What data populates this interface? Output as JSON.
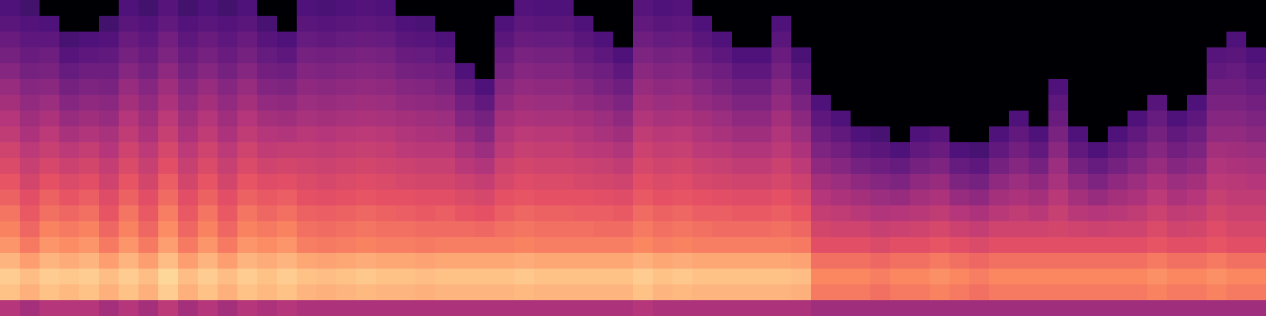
{
  "chart_data": {
    "type": "heatmap",
    "tick_labels": false,
    "zlim": [
      0,
      100
    ],
    "cells": [
      [
        50,
        88,
        90,
        85,
        78,
        74,
        71,
        67,
        64,
        60,
        57,
        53,
        50,
        46,
        43,
        39,
        35,
        32,
        28,
        25
      ],
      [
        46,
        84,
        87,
        80,
        72,
        68,
        65,
        62,
        58,
        55,
        52,
        48,
        45,
        42,
        39,
        35,
        32,
        29,
        26,
        22
      ],
      [
        50,
        88,
        90,
        85,
        78,
        74,
        70,
        67,
        63,
        59,
        55,
        52,
        48,
        44,
        40,
        36,
        33,
        29,
        25,
        0
      ],
      [
        50,
        86,
        89,
        83,
        76,
        72,
        68,
        64,
        60,
        56,
        52,
        47,
        43,
        39,
        35,
        31,
        27,
        23,
        0,
        0
      ],
      [
        50,
        88,
        90,
        85,
        78,
        74,
        70,
        66,
        62,
        58,
        54,
        49,
        45,
        41,
        37,
        33,
        29,
        25,
        0,
        0
      ],
      [
        46,
        84,
        87,
        80,
        72,
        68,
        64,
        61,
        57,
        54,
        50,
        47,
        43,
        40,
        36,
        33,
        30,
        26,
        22,
        0
      ],
      [
        50,
        88,
        90,
        85,
        78,
        74,
        71,
        67,
        64,
        60,
        57,
        53,
        50,
        46,
        43,
        39,
        35,
        32,
        28,
        25
      ],
      [
        46,
        84,
        87,
        80,
        72,
        68,
        65,
        62,
        58,
        55,
        52,
        48,
        45,
        42,
        39,
        35,
        32,
        29,
        26,
        22
      ],
      [
        52,
        90,
        92,
        87,
        80,
        76,
        73,
        69,
        66,
        62,
        59,
        55,
        52,
        48,
        45,
        41,
        37,
        34,
        30,
        27
      ],
      [
        46,
        84,
        87,
        80,
        72,
        68,
        65,
        62,
        58,
        55,
        52,
        48,
        45,
        42,
        39,
        35,
        32,
        29,
        26,
        22
      ],
      [
        50,
        88,
        90,
        85,
        78,
        74,
        71,
        67,
        64,
        60,
        57,
        53,
        50,
        46,
        43,
        39,
        35,
        32,
        28,
        25
      ],
      [
        46,
        84,
        87,
        80,
        72,
        68,
        65,
        62,
        58,
        55,
        52,
        48,
        45,
        42,
        39,
        35,
        32,
        29,
        26,
        22
      ],
      [
        50,
        88,
        90,
        85,
        78,
        74,
        71,
        67,
        64,
        60,
        57,
        53,
        50,
        46,
        43,
        39,
        35,
        32,
        28,
        25
      ],
      [
        48,
        86,
        88,
        83,
        76,
        72,
        68,
        65,
        61,
        57,
        53,
        50,
        46,
        42,
        38,
        34,
        31,
        27,
        23,
        0
      ],
      [
        50,
        88,
        90,
        85,
        78,
        74,
        70,
        66,
        62,
        58,
        54,
        49,
        45,
        41,
        37,
        33,
        29,
        25,
        0,
        0
      ],
      [
        48,
        85,
        88,
        82,
        73,
        70,
        67,
        63,
        60,
        57,
        54,
        51,
        47,
        44,
        41,
        38,
        35,
        31,
        28,
        25
      ],
      [
        48,
        84,
        87,
        81,
        72,
        69,
        66,
        62,
        59,
        56,
        53,
        50,
        46,
        43,
        40,
        37,
        34,
        30,
        27,
        24
      ],
      [
        48,
        85,
        88,
        82,
        73,
        70,
        67,
        63,
        60,
        57,
        54,
        51,
        47,
        44,
        41,
        38,
        35,
        31,
        28,
        25
      ],
      [
        48,
        86,
        89,
        83,
        74,
        71,
        68,
        64,
        61,
        58,
        55,
        52,
        48,
        45,
        42,
        39,
        36,
        32,
        29,
        26
      ],
      [
        48,
        85,
        88,
        82,
        73,
        70,
        67,
        63,
        60,
        57,
        54,
        51,
        47,
        44,
        41,
        38,
        35,
        31,
        28,
        25
      ],
      [
        48,
        85,
        88,
        82,
        73,
        70,
        66,
        63,
        59,
        56,
        52,
        49,
        46,
        42,
        39,
        35,
        32,
        28,
        25,
        0
      ],
      [
        48,
        84,
        87,
        81,
        72,
        69,
        65,
        62,
        58,
        55,
        51,
        48,
        45,
        41,
        38,
        34,
        31,
        27,
        24,
        0
      ],
      [
        48,
        85,
        88,
        82,
        73,
        69,
        66,
        62,
        58,
        55,
        51,
        47,
        44,
        40,
        36,
        33,
        29,
        25,
        0,
        0
      ],
      [
        48,
        85,
        88,
        82,
        73,
        69,
        64,
        60,
        56,
        51,
        47,
        43,
        38,
        34,
        30,
        25,
        0,
        0,
        0,
        0
      ],
      [
        48,
        85,
        88,
        82,
        73,
        68,
        63,
        59,
        54,
        49,
        44,
        39,
        35,
        30,
        25,
        0,
        0,
        0,
        0,
        0
      ],
      [
        48,
        85,
        88,
        82,
        73,
        70,
        66,
        63,
        59,
        56,
        52,
        49,
        46,
        42,
        39,
        35,
        32,
        28,
        25,
        0
      ],
      [
        48,
        86,
        89,
        83,
        74,
        71,
        68,
        64,
        61,
        58,
        55,
        52,
        48,
        45,
        42,
        39,
        36,
        32,
        29,
        26
      ],
      [
        48,
        85,
        88,
        82,
        73,
        70,
        67,
        63,
        60,
        57,
        54,
        51,
        47,
        44,
        41,
        38,
        35,
        31,
        28,
        25
      ],
      [
        48,
        85,
        88,
        82,
        73,
        70,
        67,
        63,
        60,
        57,
        54,
        51,
        47,
        44,
        41,
        38,
        35,
        31,
        28,
        25
      ],
      [
        48,
        85,
        88,
        82,
        73,
        70,
        66,
        63,
        59,
        56,
        52,
        49,
        46,
        42,
        39,
        35,
        32,
        28,
        25,
        0
      ],
      [
        48,
        85,
        88,
        82,
        73,
        69,
        66,
        62,
        58,
        55,
        51,
        47,
        44,
        40,
        36,
        33,
        29,
        25,
        0,
        0
      ],
      [
        48,
        85,
        88,
        82,
        73,
        69,
        65,
        61,
        57,
        53,
        49,
        45,
        41,
        37,
        33,
        29,
        25,
        0,
        0,
        0
      ],
      [
        50,
        88,
        90,
        84,
        75,
        72,
        69,
        65,
        62,
        59,
        56,
        53,
        49,
        46,
        43,
        40,
        37,
        33,
        30,
        27
      ],
      [
        48,
        85,
        88,
        82,
        73,
        70,
        67,
        63,
        60,
        57,
        54,
        51,
        47,
        44,
        41,
        38,
        35,
        31,
        28,
        25
      ],
      [
        48,
        86,
        89,
        83,
        74,
        71,
        68,
        64,
        61,
        58,
        55,
        52,
        48,
        45,
        42,
        39,
        36,
        32,
        29,
        26
      ],
      [
        48,
        85,
        88,
        82,
        73,
        70,
        66,
        63,
        59,
        56,
        52,
        49,
        46,
        42,
        39,
        35,
        32,
        28,
        25,
        0
      ],
      [
        48,
        85,
        88,
        82,
        73,
        69,
        66,
        62,
        58,
        55,
        51,
        47,
        44,
        40,
        36,
        33,
        29,
        25,
        0,
        0
      ],
      [
        48,
        85,
        88,
        82,
        73,
        69,
        65,
        61,
        57,
        53,
        49,
        45,
        41,
        37,
        33,
        29,
        25,
        0,
        0,
        0
      ],
      [
        48,
        85,
        88,
        82,
        73,
        69,
        65,
        61,
        57,
        53,
        49,
        45,
        41,
        37,
        33,
        29,
        25,
        0,
        0,
        0
      ],
      [
        48,
        85,
        88,
        82,
        73,
        70,
        66,
        63,
        59,
        56,
        52,
        49,
        46,
        42,
        39,
        35,
        32,
        28,
        25,
        0
      ],
      [
        48,
        84,
        87,
        81,
        72,
        68,
        64,
        60,
        56,
        52,
        48,
        44,
        40,
        36,
        32,
        28,
        24,
        0,
        0,
        0
      ],
      [
        45,
        72,
        75,
        70,
        62,
        58,
        54,
        50,
        46,
        41,
        37,
        33,
        29,
        25,
        0,
        0,
        0,
        0,
        0,
        0
      ],
      [
        45,
        72,
        75,
        70,
        62,
        57,
        53,
        48,
        44,
        39,
        34,
        30,
        25,
        0,
        0,
        0,
        0,
        0,
        0,
        0
      ],
      [
        45,
        72,
        75,
        70,
        62,
        57,
        51,
        46,
        41,
        35,
        30,
        25,
        0,
        0,
        0,
        0,
        0,
        0,
        0,
        0
      ],
      [
        45,
        70,
        73,
        68,
        60,
        55,
        49,
        44,
        39,
        33,
        28,
        23,
        0,
        0,
        0,
        0,
        0,
        0,
        0,
        0
      ],
      [
        45,
        72,
        75,
        70,
        62,
        56,
        50,
        43,
        37,
        31,
        25,
        0,
        0,
        0,
        0,
        0,
        0,
        0,
        0,
        0
      ],
      [
        45,
        72,
        75,
        70,
        62,
        57,
        51,
        46,
        41,
        35,
        30,
        25,
        0,
        0,
        0,
        0,
        0,
        0,
        0,
        0
      ],
      [
        45,
        74,
        77,
        72,
        64,
        59,
        53,
        48,
        43,
        37,
        32,
        27,
        0,
        0,
        0,
        0,
        0,
        0,
        0,
        0
      ],
      [
        45,
        72,
        75,
        70,
        62,
        56,
        50,
        43,
        37,
        31,
        25,
        0,
        0,
        0,
        0,
        0,
        0,
        0,
        0,
        0
      ],
      [
        45,
        70,
        73,
        68,
        60,
        54,
        48,
        41,
        35,
        29,
        23,
        0,
        0,
        0,
        0,
        0,
        0,
        0,
        0,
        0
      ],
      [
        45,
        72,
        75,
        70,
        62,
        57,
        51,
        46,
        41,
        35,
        30,
        25,
        0,
        0,
        0,
        0,
        0,
        0,
        0,
        0
      ],
      [
        45,
        72,
        75,
        70,
        62,
        57,
        53,
        48,
        44,
        39,
        34,
        30,
        25,
        0,
        0,
        0,
        0,
        0,
        0,
        0
      ],
      [
        45,
        72,
        75,
        70,
        62,
        57,
        51,
        46,
        41,
        35,
        30,
        25,
        0,
        0,
        0,
        0,
        0,
        0,
        0,
        0
      ],
      [
        45,
        72,
        75,
        70,
        62,
        58,
        55,
        51,
        47,
        44,
        40,
        36,
        32,
        29,
        25,
        0,
        0,
        0,
        0,
        0
      ],
      [
        45,
        72,
        75,
        70,
        62,
        57,
        51,
        46,
        41,
        35,
        30,
        25,
        0,
        0,
        0,
        0,
        0,
        0,
        0,
        0
      ],
      [
        45,
        72,
        75,
        70,
        62,
        56,
        50,
        43,
        37,
        31,
        25,
        0,
        0,
        0,
        0,
        0,
        0,
        0,
        0,
        0
      ],
      [
        45,
        72,
        75,
        70,
        62,
        57,
        51,
        46,
        41,
        35,
        30,
        25,
        0,
        0,
        0,
        0,
        0,
        0,
        0,
        0
      ],
      [
        45,
        72,
        75,
        70,
        62,
        57,
        53,
        48,
        44,
        39,
        34,
        30,
        25,
        0,
        0,
        0,
        0,
        0,
        0,
        0
      ],
      [
        45,
        74,
        77,
        72,
        64,
        60,
        56,
        52,
        48,
        43,
        39,
        35,
        31,
        27,
        0,
        0,
        0,
        0,
        0,
        0
      ],
      [
        45,
        72,
        75,
        70,
        62,
        57,
        53,
        48,
        44,
        39,
        34,
        30,
        25,
        0,
        0,
        0,
        0,
        0,
        0,
        0
      ],
      [
        45,
        72,
        75,
        70,
        62,
        58,
        54,
        50,
        46,
        41,
        37,
        33,
        29,
        25,
        0,
        0,
        0,
        0,
        0,
        0
      ],
      [
        45,
        74,
        77,
        72,
        64,
        61,
        58,
        55,
        52,
        49,
        46,
        42,
        39,
        36,
        33,
        30,
        27,
        0,
        0,
        0
      ],
      [
        45,
        72,
        75,
        70,
        62,
        59,
        56,
        53,
        51,
        48,
        45,
        42,
        39,
        36,
        33,
        31,
        28,
        25,
        0,
        0
      ],
      [
        45,
        72,
        75,
        70,
        62,
        59,
        56,
        53,
        50,
        47,
        44,
        40,
        37,
        34,
        31,
        28,
        25,
        0,
        0,
        0
      ]
    ]
  }
}
